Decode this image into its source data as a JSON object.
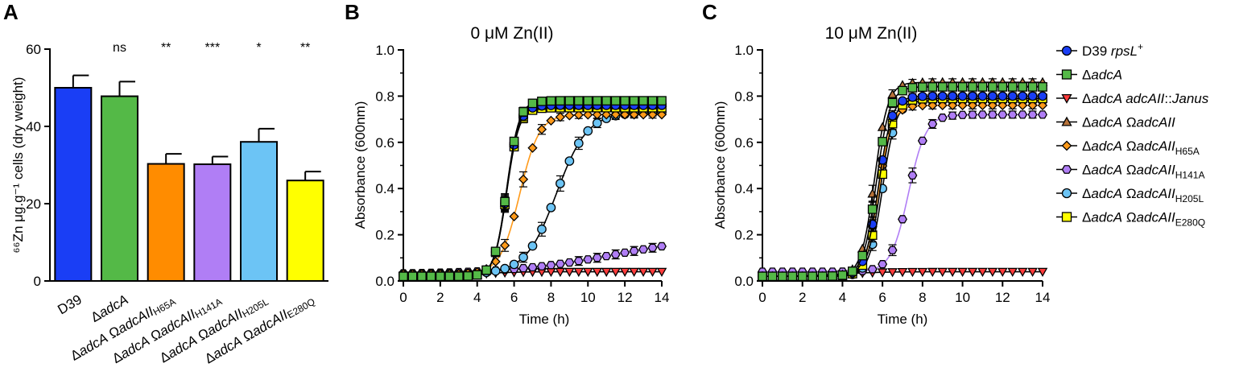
{
  "chart_data": [
    {
      "panel": "A",
      "type": "bar",
      "title": "",
      "ylabel": "⁶⁶Zn μg.g⁻¹ cells (dry weight)",
      "ylim": [
        0,
        60
      ],
      "yticks": [
        "0",
        "20",
        "40",
        "60"
      ],
      "categories": [
        {
          "base": "D39",
          "ital": "",
          "sub": ""
        },
        {
          "base": "Δ",
          "ital": "adcA",
          "sub": ""
        },
        {
          "base": "Δ",
          "ital": "adcA",
          "mid": " Ω",
          "ital2": "adcAII",
          "sub": "H65A"
        },
        {
          "base": "Δ",
          "ital": "adcA",
          "mid": " Ω",
          "ital2": "adcAII",
          "sub": "H141A"
        },
        {
          "base": "Δ",
          "ital": "adcA",
          "mid": " Ω",
          "ital2": "adcAII",
          "sub": "H205L"
        },
        {
          "base": "Δ",
          "ital": "adcA",
          "mid": " Ω",
          "ital2": "adcAII",
          "sub": "E280Q"
        }
      ],
      "values": [
        50,
        47.8,
        30.3,
        30.2,
        36,
        26
      ],
      "errors": [
        3.2,
        3.8,
        2.6,
        2,
        3.4,
        2.3
      ],
      "colors": [
        "#1a3ef5",
        "#54b947",
        "#ff8c00",
        "#b07ef5",
        "#6cc4f5",
        "#ffff00"
      ],
      "significance": [
        "",
        "ns",
        "**",
        "***",
        "*",
        "**"
      ]
    },
    {
      "panel": "B",
      "type": "line",
      "title": "0 μM Zn(II)",
      "xlabel": "Time (h)",
      "ylabel": "Absorbance (600nm)",
      "xlim": [
        0,
        14
      ],
      "ylim": [
        0,
        1
      ],
      "xticks": [
        "0",
        "2",
        "4",
        "6",
        "8",
        "10",
        "12",
        "14"
      ],
      "yticks": [
        "0.0",
        "0.2",
        "0.4",
        "0.6",
        "0.8",
        "1.0"
      ],
      "series": [
        {
          "name": "D39 rpsL+",
          "mid": 5.6,
          "k": 3.0,
          "top": 0.76,
          "base": 0.02
        },
        {
          "name": "ΔadcA",
          "mid": 5.6,
          "k": 3.0,
          "top": 0.78,
          "base": 0.02
        },
        {
          "name": "ΔadcA adcAII::Janus",
          "mid": 4.0,
          "k": 1.0,
          "top": 0.04,
          "base": 0.02
        },
        {
          "name": "ΔadcA ΩadcAII",
          "mid": 5.6,
          "k": 3.0,
          "top": 0.77,
          "base": 0.02
        },
        {
          "name": "ΔadcA ΩadcAIIH65A",
          "mid": 6.3,
          "k": 1.9,
          "top": 0.72,
          "base": 0.03
        },
        {
          "name": "ΔadcA ΩadcAIIH141A",
          "mid": 11.5,
          "k": 0.35,
          "top": 0.2,
          "base": 0.03
        },
        {
          "name": "ΔadcA ΩadcAIIH205L",
          "mid": 8.3,
          "k": 1.2,
          "top": 0.73,
          "base": 0.03
        },
        {
          "name": "ΔadcA ΩadcAIIE280Q",
          "mid": 5.6,
          "k": 3.0,
          "top": 0.75,
          "base": 0.02
        }
      ]
    },
    {
      "panel": "C",
      "type": "line",
      "title": "10 μM Zn(II)",
      "xlabel": "Time (h)",
      "ylabel": "Absorbance (600nm)",
      "xlim": [
        0,
        14
      ],
      "ylim": [
        0,
        1
      ],
      "xticks": [
        "0",
        "2",
        "4",
        "6",
        "8",
        "10",
        "12",
        "14"
      ],
      "yticks": [
        "0.0",
        "0.2",
        "0.4",
        "0.6",
        "0.8",
        "1.0"
      ],
      "series": [
        {
          "name": "D39 rpsL+",
          "mid": 5.8,
          "k": 3.0,
          "top": 0.8,
          "base": 0.02
        },
        {
          "name": "ΔadcA",
          "mid": 5.7,
          "k": 3.0,
          "top": 0.84,
          "base": 0.02
        },
        {
          "name": "ΔadcA adcAII::Janus",
          "mid": 4.0,
          "k": 1.0,
          "top": 0.04,
          "base": 0.02
        },
        {
          "name": "ΔadcA ΩadcAII",
          "mid": 5.6,
          "k": 3.0,
          "top": 0.86,
          "base": 0.02
        },
        {
          "name": "ΔadcA ΩadcAIIH65A",
          "mid": 5.8,
          "k": 3.0,
          "top": 0.76,
          "base": 0.02
        },
        {
          "name": "ΔadcA ΩadcAIIH141A",
          "mid": 7.3,
          "k": 2.3,
          "top": 0.72,
          "base": 0.04
        },
        {
          "name": "ΔadcA ΩadcAIIH205L",
          "mid": 6.0,
          "k": 3.0,
          "top": 0.78,
          "base": 0.02
        },
        {
          "name": "ΔadcA ΩadcAIIE280Q",
          "mid": 5.9,
          "k": 3.0,
          "top": 0.79,
          "base": 0.02
        }
      ]
    }
  ],
  "panel_letters": [
    "A",
    "B",
    "C"
  ],
  "legend": [
    {
      "pre": "D39 ",
      "ital": "rpsL",
      "sup": "+",
      "sub": "",
      "color": "#1a3ef5",
      "marker": "circle"
    },
    {
      "pre": "Δ",
      "ital": "adcA",
      "mid": "",
      "ital2": "",
      "sub": "",
      "color": "#54b947",
      "marker": "square"
    },
    {
      "pre": "Δ",
      "ital": "adcA adcAII",
      "mid": "::",
      "ital2": "Janus",
      "sub": "",
      "color": "#ff3b3b",
      "marker": "triangle-down"
    },
    {
      "pre": "Δ",
      "ital": "adcA",
      "mid": " Ω",
      "ital2": "adcAII",
      "sub": "",
      "color": "#b8733a",
      "marker": "triangle-up"
    },
    {
      "pre": "Δ",
      "ital": "adcA",
      "mid": " Ω",
      "ital2": "adcAII",
      "sub": "H65A",
      "color": "#ff9a1a",
      "marker": "diamond"
    },
    {
      "pre": "Δ",
      "ital": "adcA",
      "mid": " Ω",
      "ital2": "adcAII",
      "sub": "H141A",
      "color": "#b07ef5",
      "marker": "hexagon"
    },
    {
      "pre": "Δ",
      "ital": "adcA",
      "mid": " Ω",
      "ital2": "adcAII",
      "sub": "H205L",
      "color": "#6cc4f5",
      "marker": "circle"
    },
    {
      "pre": "Δ",
      "ital": "adcA",
      "mid": " Ω",
      "ital2": "adcAII",
      "sub": "E280Q",
      "color": "#ffff00",
      "marker": "square"
    }
  ]
}
